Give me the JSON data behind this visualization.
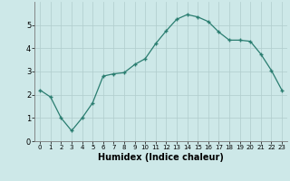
{
  "x": [
    0,
    1,
    2,
    3,
    4,
    5,
    6,
    7,
    8,
    9,
    10,
    11,
    12,
    13,
    14,
    15,
    16,
    17,
    18,
    19,
    20,
    21,
    22,
    23
  ],
  "y": [
    2.2,
    1.9,
    1.0,
    0.45,
    1.0,
    1.65,
    2.8,
    2.9,
    2.95,
    3.3,
    3.55,
    4.2,
    4.75,
    5.25,
    5.45,
    5.35,
    5.15,
    4.7,
    4.35,
    4.35,
    4.3,
    3.75,
    3.05,
    2.2
  ],
  "xlabel": "Humidex (Indice chaleur)",
  "xlim": [
    -0.5,
    23.5
  ],
  "ylim": [
    0,
    6
  ],
  "yticks": [
    0,
    1,
    2,
    3,
    4,
    5
  ],
  "xticks": [
    0,
    1,
    2,
    3,
    4,
    5,
    6,
    7,
    8,
    9,
    10,
    11,
    12,
    13,
    14,
    15,
    16,
    17,
    18,
    19,
    20,
    21,
    22,
    23
  ],
  "line_color": "#2a7d70",
  "marker": "+",
  "marker_size": 3.5,
  "background_color": "#cde8e8",
  "grid_color": "#b0cccc",
  "xlabel_fontsize": 7,
  "tick_fontsize_x": 5,
  "tick_fontsize_y": 6
}
